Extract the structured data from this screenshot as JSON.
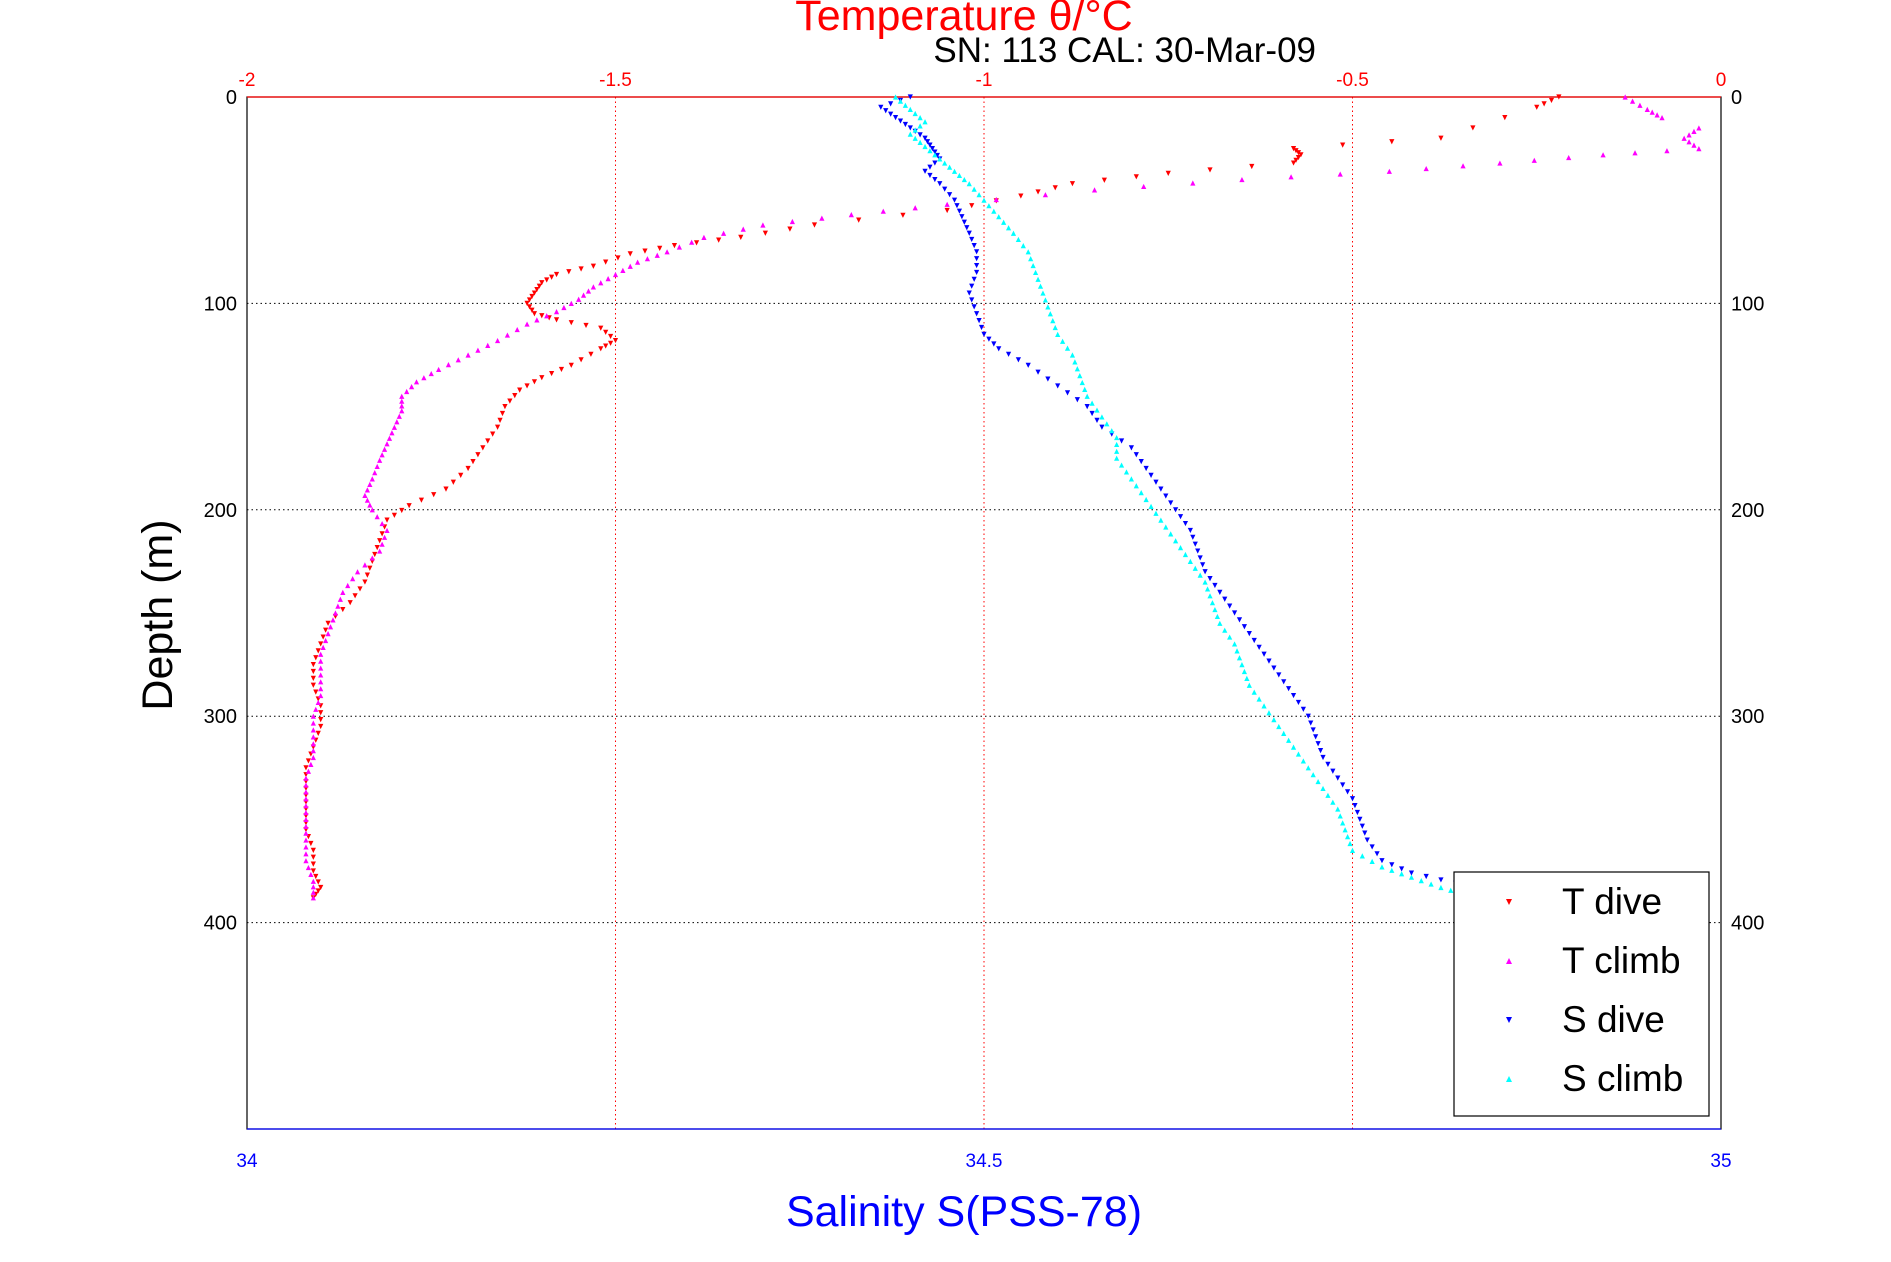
{
  "chart_data": {
    "type": "scatter",
    "title": "Temperature θ/°C",
    "subtitle": "SN: 113  CAL: 30-Mar-09",
    "ylabel": "Depth (m)",
    "xlabel": "Salinity S(PSS-78)",
    "x2label": "Temperature θ/°C",
    "ylim": [
      0,
      500
    ],
    "y_reversed": true,
    "xlim_salinity": [
      34,
      35
    ],
    "xlim_temperature": [
      -2,
      0
    ],
    "yticks": [
      "0",
      "100",
      "200",
      "300",
      "400"
    ],
    "xticks_salinity": [
      "34",
      "34.5",
      "35"
    ],
    "xticks_temperature": [
      "-2",
      "-1.5",
      "-1",
      "-0.5",
      "0"
    ],
    "grid": true,
    "legend_position": "bottom-right",
    "colors": {
      "temperature_axis": "#ff0000",
      "salinity_axis": "#0000ff",
      "t_dive": "#ff0000",
      "t_climb": "#ff00ff",
      "s_dive": "#0000ff",
      "s_climb": "#00ffff"
    },
    "series": [
      {
        "name": "T dive",
        "axis": "temperature",
        "color": "#ff0000",
        "points": [
          [
            -0.22,
            0
          ],
          [
            -0.25,
            5
          ],
          [
            -0.38,
            20
          ],
          [
            -0.58,
            25
          ],
          [
            -0.57,
            28
          ],
          [
            -0.58,
            32
          ],
          [
            -0.75,
            37
          ],
          [
            -0.88,
            42
          ],
          [
            -0.95,
            48
          ],
          [
            -1.05,
            55
          ],
          [
            -1.23,
            62
          ],
          [
            -1.33,
            68
          ],
          [
            -1.42,
            72
          ],
          [
            -1.48,
            76
          ],
          [
            -1.53,
            82
          ],
          [
            -1.58,
            86
          ],
          [
            -1.6,
            90
          ],
          [
            -1.61,
            95
          ],
          [
            -1.62,
            100
          ],
          [
            -1.61,
            105
          ],
          [
            -1.58,
            108
          ],
          [
            -1.52,
            112
          ],
          [
            -1.5,
            118
          ],
          [
            -1.52,
            122
          ],
          [
            -1.56,
            130
          ],
          [
            -1.6,
            136
          ],
          [
            -1.63,
            142
          ],
          [
            -1.65,
            150
          ],
          [
            -1.66,
            160
          ],
          [
            -1.68,
            170
          ],
          [
            -1.7,
            180
          ],
          [
            -1.73,
            190
          ],
          [
            -1.78,
            198
          ],
          [
            -1.81,
            205
          ],
          [
            -1.82,
            215
          ],
          [
            -1.83,
            225
          ],
          [
            -1.84,
            235
          ],
          [
            -1.86,
            245
          ],
          [
            -1.89,
            255
          ],
          [
            -1.9,
            265
          ],
          [
            -1.91,
            275
          ],
          [
            -1.91,
            285
          ],
          [
            -1.9,
            295
          ],
          [
            -1.9,
            305
          ],
          [
            -1.91,
            315
          ],
          [
            -1.92,
            325
          ],
          [
            -1.92,
            335
          ],
          [
            -1.92,
            345
          ],
          [
            -1.92,
            355
          ],
          [
            -1.91,
            365
          ],
          [
            -1.91,
            375
          ],
          [
            -1.9,
            383
          ],
          [
            -1.91,
            388
          ]
        ]
      },
      {
        "name": "T climb",
        "axis": "temperature",
        "color": "#ff00ff",
        "points": [
          [
            -0.03,
            15
          ],
          [
            -0.05,
            20
          ],
          [
            -0.03,
            25
          ],
          [
            -0.16,
            28
          ],
          [
            -0.3,
            32
          ],
          [
            -0.45,
            36
          ],
          [
            -0.65,
            40
          ],
          [
            -0.85,
            45
          ],
          [
            -1.05,
            52
          ],
          [
            -1.18,
            57
          ],
          [
            -1.3,
            62
          ],
          [
            -1.38,
            68
          ],
          [
            -1.43,
            75
          ],
          [
            -1.47,
            80
          ],
          [
            -1.5,
            86
          ],
          [
            -1.53,
            92
          ],
          [
            -1.55,
            98
          ],
          [
            -1.58,
            104
          ],
          [
            -1.62,
            110
          ],
          [
            -1.66,
            118
          ],
          [
            -1.7,
            125
          ],
          [
            -1.74,
            132
          ],
          [
            -1.77,
            138
          ],
          [
            -1.79,
            145
          ],
          [
            -1.79,
            152
          ],
          [
            -1.8,
            160
          ],
          [
            -1.81,
            168
          ],
          [
            -1.82,
            176
          ],
          [
            -1.83,
            185
          ],
          [
            -1.84,
            193
          ],
          [
            -1.83,
            200
          ],
          [
            -1.81,
            210
          ],
          [
            -1.82,
            220
          ],
          [
            -1.85,
            230
          ],
          [
            -1.87,
            240
          ],
          [
            -1.88,
            250
          ],
          [
            -1.89,
            260
          ],
          [
            -1.9,
            270
          ],
          [
            -1.9,
            280
          ],
          [
            -1.9,
            290
          ],
          [
            -1.91,
            300
          ],
          [
            -1.91,
            310
          ],
          [
            -1.91,
            320
          ],
          [
            -1.92,
            330
          ],
          [
            -1.92,
            340
          ],
          [
            -1.92,
            350
          ],
          [
            -1.92,
            360
          ],
          [
            -1.92,
            370
          ],
          [
            -1.91,
            380
          ],
          [
            -1.91,
            388
          ],
          [
            -0.13,
            0
          ],
          [
            -0.1,
            6
          ],
          [
            -0.08,
            10
          ]
        ]
      },
      {
        "name": "S dive",
        "axis": "salinity",
        "color": "#0000ff",
        "points": [
          [
            34.45,
            0
          ],
          [
            34.43,
            5
          ],
          [
            34.44,
            10
          ],
          [
            34.45,
            15
          ],
          [
            34.46,
            20
          ],
          [
            34.465,
            25
          ],
          [
            34.47,
            30
          ],
          [
            34.46,
            36
          ],
          [
            34.47,
            42
          ],
          [
            34.48,
            50
          ],
          [
            34.485,
            58
          ],
          [
            34.49,
            66
          ],
          [
            34.495,
            75
          ],
          [
            34.495,
            85
          ],
          [
            34.49,
            95
          ],
          [
            34.495,
            105
          ],
          [
            34.5,
            115
          ],
          [
            34.51,
            122
          ],
          [
            34.53,
            130
          ],
          [
            34.55,
            140
          ],
          [
            34.57,
            150
          ],
          [
            34.58,
            160
          ],
          [
            34.6,
            170
          ],
          [
            34.61,
            180
          ],
          [
            34.62,
            190
          ],
          [
            34.63,
            200
          ],
          [
            34.64,
            210
          ],
          [
            34.645,
            220
          ],
          [
            34.65,
            230
          ],
          [
            34.66,
            240
          ],
          [
            34.67,
            250
          ],
          [
            34.68,
            260
          ],
          [
            34.69,
            270
          ],
          [
            34.7,
            280
          ],
          [
            34.71,
            290
          ],
          [
            34.72,
            300
          ],
          [
            34.725,
            310
          ],
          [
            34.73,
            320
          ],
          [
            34.74,
            330
          ],
          [
            34.75,
            340
          ],
          [
            34.755,
            350
          ],
          [
            34.76,
            360
          ],
          [
            34.77,
            370
          ],
          [
            34.79,
            376
          ],
          [
            34.82,
            381
          ],
          [
            34.83,
            385
          ],
          [
            34.85,
            388
          ],
          [
            34.83,
            390
          ]
        ]
      },
      {
        "name": "S climb",
        "axis": "salinity",
        "color": "#00ffff",
        "points": [
          [
            34.44,
            0
          ],
          [
            34.45,
            6
          ],
          [
            34.46,
            12
          ],
          [
            34.45,
            18
          ],
          [
            34.46,
            24
          ],
          [
            34.47,
            30
          ],
          [
            34.48,
            36
          ],
          [
            34.49,
            42
          ],
          [
            34.5,
            50
          ],
          [
            34.51,
            58
          ],
          [
            34.52,
            66
          ],
          [
            34.53,
            75
          ],
          [
            34.535,
            85
          ],
          [
            34.54,
            95
          ],
          [
            34.545,
            105
          ],
          [
            34.55,
            115
          ],
          [
            34.56,
            125
          ],
          [
            34.565,
            135
          ],
          [
            34.57,
            145
          ],
          [
            34.58,
            155
          ],
          [
            34.59,
            165
          ],
          [
            34.59,
            175
          ],
          [
            34.6,
            185
          ],
          [
            34.61,
            195
          ],
          [
            34.62,
            205
          ],
          [
            34.63,
            215
          ],
          [
            34.64,
            225
          ],
          [
            34.65,
            235
          ],
          [
            34.655,
            245
          ],
          [
            34.66,
            255
          ],
          [
            34.67,
            265
          ],
          [
            34.675,
            275
          ],
          [
            34.68,
            285
          ],
          [
            34.69,
            295
          ],
          [
            34.7,
            305
          ],
          [
            34.71,
            315
          ],
          [
            34.72,
            325
          ],
          [
            34.73,
            335
          ],
          [
            34.74,
            345
          ],
          [
            34.745,
            355
          ],
          [
            34.75,
            365
          ],
          [
            34.77,
            373
          ],
          [
            34.79,
            378
          ],
          [
            34.81,
            383
          ],
          [
            34.83,
            387
          ]
        ]
      }
    ]
  }
}
